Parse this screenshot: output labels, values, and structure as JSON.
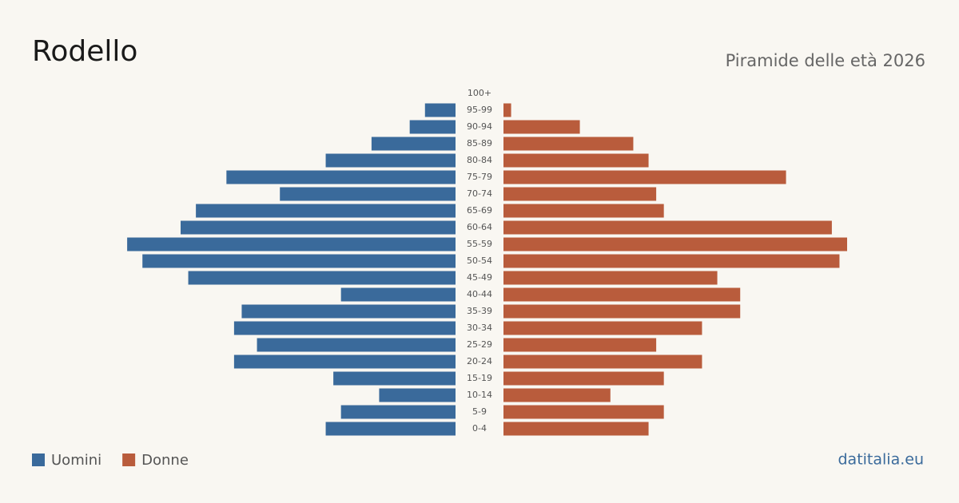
{
  "chart_data": {
    "type": "pyramid",
    "title": "Rodello",
    "subtitle": "Piramide delle età 2026",
    "source": "datitalia.eu",
    "categories": [
      "100+",
      "95-99",
      "90-94",
      "85-89",
      "80-84",
      "75-79",
      "70-74",
      "65-69",
      "60-64",
      "55-59",
      "50-54",
      "45-49",
      "40-44",
      "35-39",
      "30-34",
      "25-29",
      "20-24",
      "15-19",
      "10-14",
      "5-9",
      "0-4"
    ],
    "series": [
      {
        "name": "Uomini",
        "color": "#3a6a9b",
        "side": "left",
        "values": [
          0,
          4,
          6,
          11,
          17,
          30,
          23,
          34,
          36,
          43,
          41,
          35,
          15,
          28,
          29,
          26,
          29,
          16,
          10,
          15,
          17
        ]
      },
      {
        "name": "Donne",
        "color": "#b95c3c",
        "side": "right",
        "values": [
          0,
          1,
          10,
          17,
          19,
          37,
          20,
          21,
          43,
          45,
          44,
          28,
          31,
          31,
          26,
          20,
          26,
          21,
          14,
          21,
          19
        ]
      }
    ]
  }
}
